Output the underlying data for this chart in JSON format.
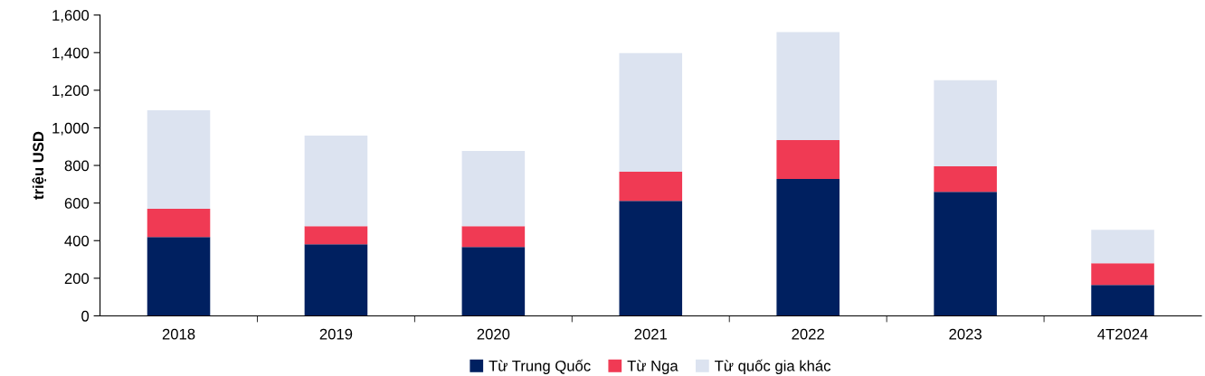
{
  "chart_data": {
    "type": "bar",
    "stacked": true,
    "ylabel": "triệu USD",
    "categories": [
      "2018",
      "2019",
      "2020",
      "2021",
      "2022",
      "2023",
      "4T2024"
    ],
    "series": [
      {
        "name": "Từ Trung Quốc",
        "color": "#002060",
        "values": [
          419,
          381,
          366,
          612,
          728,
          660,
          164
        ]
      },
      {
        "name": "Từ Nga",
        "color": "#f03a54",
        "values": [
          150,
          96,
          111,
          154,
          207,
          135,
          116
        ]
      },
      {
        "name": "Từ quốc gia khác",
        "color": "#dce3f0",
        "values": [
          525,
          482,
          400,
          632,
          574,
          458,
          178
        ]
      }
    ],
    "ylim": [
      0,
      1600
    ],
    "yticks": [
      {
        "value": 0,
        "label": "0"
      },
      {
        "value": 200,
        "label": "200"
      },
      {
        "value": 400,
        "label": "400"
      },
      {
        "value": 600,
        "label": "600"
      },
      {
        "value": 800,
        "label": "800"
      },
      {
        "value": 1000,
        "label": "1,000"
      },
      {
        "value": 1200,
        "label": "1,200"
      },
      {
        "value": 1400,
        "label": "1,400"
      },
      {
        "value": 1600,
        "label": "1,600"
      }
    ],
    "grid": false,
    "legend": "bottom"
  }
}
